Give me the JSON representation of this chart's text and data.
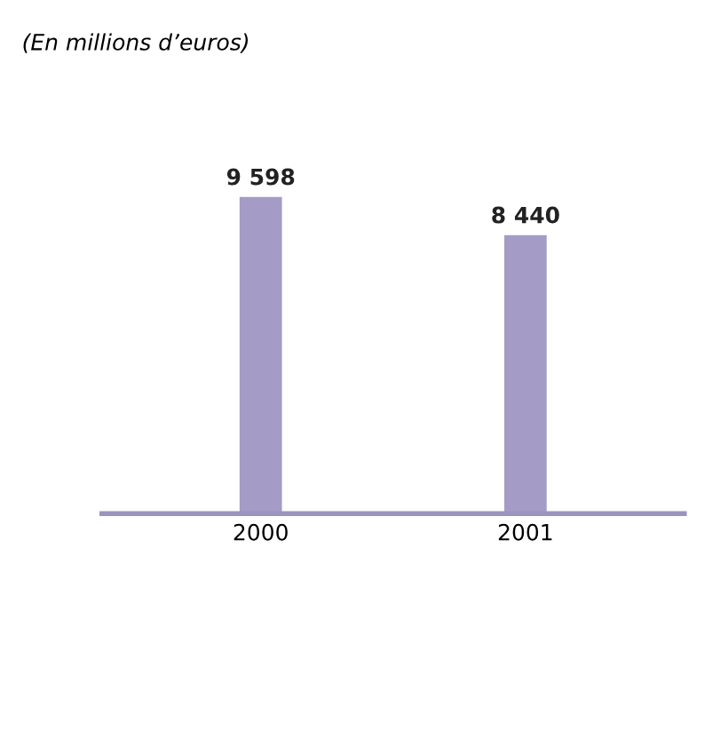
{
  "chart_data": {
    "type": "bar",
    "subtitle": "(En millions d’euros)",
    "categories": [
      "2000",
      "2001"
    ],
    "values": [
      9598,
      8440
    ],
    "value_labels": [
      "9 598",
      "8 440"
    ],
    "color": "#a49bc6",
    "grid": false,
    "legend": false
  }
}
